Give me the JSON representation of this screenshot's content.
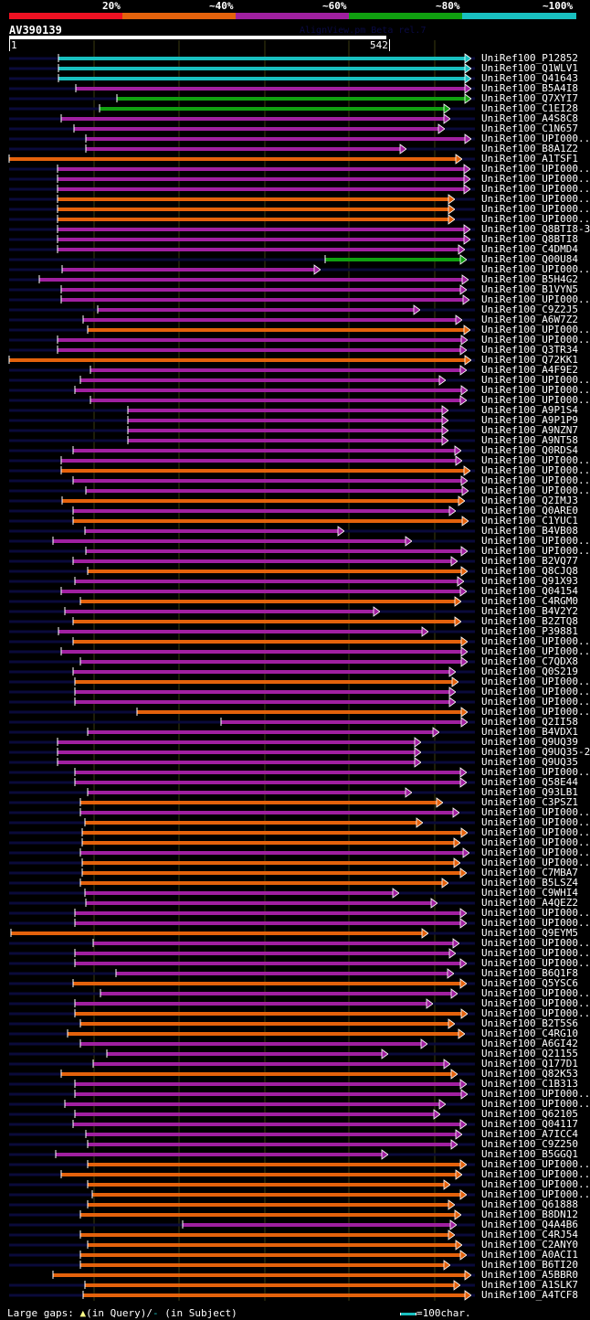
{
  "legend": {
    "bins": [
      {
        "label": "20%",
        "color": "#ee1122"
      },
      {
        "label": "~40%",
        "color": "#e4620c"
      },
      {
        "label": "~60%",
        "color": "#a020a0"
      },
      {
        "label": "~80%",
        "color": "#10a010"
      },
      {
        "label": "~100%",
        "color": "#19c0c0"
      }
    ]
  },
  "query": {
    "name": "AV390139",
    "start": "1",
    "end": "542",
    "length": 542
  },
  "watermark": "AlignView.pm Beta rel.7",
  "footer": {
    "gaps_label": "Large gaps:",
    "query_gap": "(in Query)/",
    "subject_gap": "(in Subject)",
    "scale_label": "=100char."
  },
  "colors": {
    "cyan": "#19c0c0",
    "green": "#10a010",
    "purple": "#a020a0",
    "orange": "#e4620c",
    "context": "#0a0a3a",
    "gap_marker": "#ffff88",
    "grid": "#3a3a10"
  },
  "hits": [
    {
      "name": "UniRef100_P12852",
      "c": "cyan",
      "s": 64,
      "e": 515
    },
    {
      "name": "UniRef100_Q1WLV1",
      "c": "cyan",
      "s": 64,
      "e": 515
    },
    {
      "name": "UniRef100_Q41643",
      "c": "cyan",
      "s": 64,
      "e": 515
    },
    {
      "name": "UniRef100_B5A4I8",
      "c": "purple",
      "s": 83,
      "e": 515
    },
    {
      "name": "UniRef100_Q7XYI7",
      "c": "green",
      "s": 128,
      "e": 515
    },
    {
      "name": "UniRef100_C1EI28",
      "c": "green",
      "s": 109,
      "e": 492
    },
    {
      "name": "UniRef100_A4S8C8",
      "c": "purple",
      "s": 67,
      "e": 492
    },
    {
      "name": "UniRef100_C1N657",
      "c": "purple",
      "s": 81,
      "e": 486
    },
    {
      "name": "UniRef100_UPI000..",
      "c": "purple",
      "s": 94,
      "e": 515
    },
    {
      "name": "UniRef100_B8A1Z2",
      "c": "purple",
      "s": 94,
      "e": 444
    },
    {
      "name": "UniRef100_A1TSF1",
      "c": "orange",
      "s": 10,
      "e": 505
    },
    {
      "name": "UniRef100_UPI000..",
      "c": "purple",
      "s": 63,
      "e": 514
    },
    {
      "name": "UniRef100_UPI000..",
      "c": "purple",
      "s": 63,
      "e": 514
    },
    {
      "name": "UniRef100_UPI000..",
      "c": "purple",
      "s": 63,
      "e": 514
    },
    {
      "name": "UniRef100_UPI000..",
      "c": "orange",
      "s": 63,
      "e": 497
    },
    {
      "name": "UniRef100_UPI000..",
      "c": "orange",
      "s": 63,
      "e": 497
    },
    {
      "name": "UniRef100_UPI000..",
      "c": "orange",
      "s": 63,
      "e": 497
    },
    {
      "name": "UniRef100_Q8BTI8-3",
      "c": "purple",
      "s": 63,
      "e": 514
    },
    {
      "name": "UniRef100_Q8BTI8",
      "c": "purple",
      "s": 63,
      "e": 514
    },
    {
      "name": "UniRef100_C4DMD4",
      "c": "purple",
      "s": 63,
      "e": 508
    },
    {
      "name": "UniRef100_Q00U84",
      "c": "green",
      "s": 356,
      "e": 510
    },
    {
      "name": "UniRef100_UPI000..",
      "c": "purple",
      "s": 68,
      "e": 350
    },
    {
      "name": "UniRef100_B5H4G2",
      "c": "purple",
      "s": 43,
      "e": 512
    },
    {
      "name": "UniRef100_B1VYN5",
      "c": "purple",
      "s": 67,
      "e": 510
    },
    {
      "name": "UniRef100_UPI000..",
      "c": "purple",
      "s": 67,
      "e": 513
    },
    {
      "name": "UniRef100_C9Z2J5",
      "c": "purple",
      "s": 107,
      "e": 459
    },
    {
      "name": "UniRef100_A6W7Z2",
      "c": "purple",
      "s": 91,
      "e": 505
    },
    {
      "name": "UniRef100_UPI000..",
      "c": "orange",
      "s": 96,
      "e": 514
    },
    {
      "name": "UniRef100_UPI000..",
      "c": "purple",
      "s": 63,
      "e": 511
    },
    {
      "name": "UniRef100_Q3TR34",
      "c": "purple",
      "s": 63,
      "e": 510
    },
    {
      "name": "UniRef100_Q72KK1",
      "c": "orange",
      "s": 10,
      "e": 515
    },
    {
      "name": "UniRef100_A4F9E2",
      "c": "purple",
      "s": 99,
      "e": 510
    },
    {
      "name": "UniRef100_UPI000..",
      "c": "purple",
      "s": 88,
      "e": 487
    },
    {
      "name": "UniRef100_UPI000..",
      "c": "purple",
      "s": 82,
      "e": 511
    },
    {
      "name": "UniRef100_UPI000..",
      "c": "purple",
      "s": 99,
      "e": 510
    },
    {
      "name": "UniRef100_A9P1S4",
      "c": "purple",
      "s": 140,
      "e": 490
    },
    {
      "name": "UniRef100_A9P1P9",
      "c": "purple",
      "s": 140,
      "e": 490
    },
    {
      "name": "UniRef100_A9NZN7",
      "c": "purple",
      "s": 140,
      "e": 490
    },
    {
      "name": "UniRef100_A9NT58",
      "c": "purple",
      "s": 140,
      "e": 490
    },
    {
      "name": "UniRef100_Q0RDS4",
      "c": "purple",
      "s": 80,
      "e": 504
    },
    {
      "name": "UniRef100_UPI000..",
      "c": "purple",
      "s": 67,
      "e": 505
    },
    {
      "name": "UniRef100_UPI000..",
      "c": "orange",
      "s": 67,
      "e": 514
    },
    {
      "name": "UniRef100_UPI000..",
      "c": "purple",
      "s": 80,
      "e": 511
    },
    {
      "name": "UniRef100_UPI000..",
      "c": "purple",
      "s": 94,
      "e": 512
    },
    {
      "name": "UniRef100_Q2IMJ3",
      "c": "orange",
      "s": 68,
      "e": 508
    },
    {
      "name": "UniRef100_Q0ARE0",
      "c": "purple",
      "s": 80,
      "e": 498
    },
    {
      "name": "UniRef100_C1YUC1",
      "c": "orange",
      "s": 80,
      "e": 512
    },
    {
      "name": "UniRef100_B4VB08",
      "c": "purple",
      "s": 93,
      "e": 376
    },
    {
      "name": "UniRef100_UPI000..",
      "c": "purple",
      "s": 58,
      "e": 450
    },
    {
      "name": "UniRef100_UPI000..",
      "c": "purple",
      "s": 94,
      "e": 511
    },
    {
      "name": "UniRef100_B2VQ77",
      "c": "purple",
      "s": 80,
      "e": 500
    },
    {
      "name": "UniRef100_Q8CJQ8",
      "c": "orange",
      "s": 96,
      "e": 511
    },
    {
      "name": "UniRef100_Q91X93",
      "c": "purple",
      "s": 82,
      "e": 507
    },
    {
      "name": "UniRef100_Q04154",
      "c": "purple",
      "s": 67,
      "e": 510
    },
    {
      "name": "UniRef100_C4RGM0",
      "c": "orange",
      "s": 88,
      "e": 504
    },
    {
      "name": "UniRef100_B4V2Y2",
      "c": "purple",
      "s": 71,
      "e": 415
    },
    {
      "name": "UniRef100_B2ZTQ8",
      "c": "orange",
      "s": 80,
      "e": 504
    },
    {
      "name": "UniRef100_P39881",
      "c": "purple",
      "s": 64,
      "e": 468
    },
    {
      "name": "UniRef100_UPI000..",
      "c": "orange",
      "s": 80,
      "e": 511
    },
    {
      "name": "UniRef100_UPI000..",
      "c": "purple",
      "s": 67,
      "e": 511
    },
    {
      "name": "UniRef100_C7QDX8",
      "c": "purple",
      "s": 88,
      "e": 511
    },
    {
      "name": "UniRef100_Q0S219",
      "c": "purple",
      "s": 80,
      "e": 498
    },
    {
      "name": "UniRef100_UPI000..",
      "c": "orange",
      "s": 82,
      "e": 501
    },
    {
      "name": "UniRef100_UPI000..",
      "c": "purple",
      "s": 82,
      "e": 498
    },
    {
      "name": "UniRef100_UPI000..",
      "c": "purple",
      "s": 82,
      "e": 498
    },
    {
      "name": "UniRef100_UPI000..",
      "c": "orange",
      "s": 150,
      "e": 511
    },
    {
      "name": "UniRef100_Q2II58",
      "c": "purple",
      "s": 242,
      "e": 511
    },
    {
      "name": "UniRef100_B4VDX1",
      "c": "purple",
      "s": 96,
      "e": 480
    },
    {
      "name": "UniRef100_Q9UQ39",
      "c": "purple",
      "s": 63,
      "e": 460
    },
    {
      "name": "UniRef100_Q9UQ35-2",
      "c": "purple",
      "s": 63,
      "e": 460
    },
    {
      "name": "UniRef100_Q9UQ35",
      "c": "purple",
      "s": 63,
      "e": 460
    },
    {
      "name": "UniRef100_UPI000..",
      "c": "purple",
      "s": 82,
      "e": 510
    },
    {
      "name": "UniRef100_Q58E44",
      "c": "purple",
      "s": 82,
      "e": 510
    },
    {
      "name": "UniRef100_Q93LB1",
      "c": "purple",
      "s": 96,
      "e": 450
    },
    {
      "name": "UniRef100_C3PSZ1",
      "c": "orange",
      "s": 88,
      "e": 484
    },
    {
      "name": "UniRef100_UPI000..",
      "c": "purple",
      "s": 88,
      "e": 502
    },
    {
      "name": "UniRef100_UPI000..",
      "c": "orange",
      "s": 93,
      "e": 462
    },
    {
      "name": "UniRef100_UPI000..",
      "c": "orange",
      "s": 90,
      "e": 511
    },
    {
      "name": "UniRef100_UPI000..",
      "c": "orange",
      "s": 90,
      "e": 503
    },
    {
      "name": "UniRef100_UPI000..",
      "c": "purple",
      "s": 88,
      "e": 513
    },
    {
      "name": "UniRef100_UPI000..",
      "c": "orange",
      "s": 90,
      "e": 503
    },
    {
      "name": "UniRef100_C7MBA7",
      "c": "orange",
      "s": 90,
      "e": 510
    },
    {
      "name": "UniRef100_B5LSZ4",
      "c": "orange",
      "s": 88,
      "e": 490
    },
    {
      "name": "UniRef100_C9WHI4",
      "c": "purple",
      "s": 93,
      "e": 436
    },
    {
      "name": "UniRef100_A4QEZ2",
      "c": "purple",
      "s": 94,
      "e": 478
    },
    {
      "name": "UniRef100_UPI000..",
      "c": "purple",
      "s": 82,
      "e": 510
    },
    {
      "name": "UniRef100_UPI000..",
      "c": "purple",
      "s": 82,
      "e": 510
    },
    {
      "name": "UniRef100_Q9EYM5",
      "c": "orange",
      "s": 12,
      "e": 468
    },
    {
      "name": "UniRef100_UPI000..",
      "c": "purple",
      "s": 102,
      "e": 502
    },
    {
      "name": "UniRef100_UPI000..",
      "c": "purple",
      "s": 82,
      "e": 498
    },
    {
      "name": "UniRef100_UPI000..",
      "c": "purple",
      "s": 82,
      "e": 510
    },
    {
      "name": "UniRef100_B6Q1F8",
      "c": "purple",
      "s": 127,
      "e": 496
    },
    {
      "name": "UniRef100_Q5YSC6",
      "c": "orange",
      "s": 80,
      "e": 510
    },
    {
      "name": "UniRef100_UPI000..",
      "c": "purple",
      "s": 110,
      "e": 500
    },
    {
      "name": "UniRef100_UPI000..",
      "c": "purple",
      "s": 82,
      "e": 473
    },
    {
      "name": "UniRef100_UPI000..",
      "c": "orange",
      "s": 82,
      "e": 511
    },
    {
      "name": "UniRef100_B2T5S6",
      "c": "orange",
      "s": 88,
      "e": 497
    },
    {
      "name": "UniRef100_C4RG10",
      "c": "orange",
      "s": 74,
      "e": 508
    },
    {
      "name": "UniRef100_A6GI42",
      "c": "purple",
      "s": 88,
      "e": 467
    },
    {
      "name": "UniRef100_Q21155",
      "c": "purple",
      "s": 117,
      "e": 424
    },
    {
      "name": "UniRef100_Q177D1",
      "c": "purple",
      "s": 102,
      "e": 492
    },
    {
      "name": "UniRef100_Q82K53",
      "c": "orange",
      "s": 67,
      "e": 500
    },
    {
      "name": "UniRef100_C1B313",
      "c": "purple",
      "s": 82,
      "e": 510
    },
    {
      "name": "UniRef100_UPI000..",
      "c": "purple",
      "s": 82,
      "e": 511
    },
    {
      "name": "UniRef100_UPI000..",
      "c": "purple",
      "s": 71,
      "e": 487
    },
    {
      "name": "UniRef100_Q62105",
      "c": "purple",
      "s": 82,
      "e": 481
    },
    {
      "name": "UniRef100_Q04117",
      "c": "purple",
      "s": 80,
      "e": 510
    },
    {
      "name": "UniRef100_A7ICC4",
      "c": "purple",
      "s": 94,
      "e": 505
    },
    {
      "name": "UniRef100_C9Z250",
      "c": "purple",
      "s": 96,
      "e": 500
    },
    {
      "name": "UniRef100_B5GGQ1",
      "c": "purple",
      "s": 61,
      "e": 424
    },
    {
      "name": "UniRef100_UPI000..",
      "c": "orange",
      "s": 96,
      "e": 510
    },
    {
      "name": "UniRef100_UPI000..",
      "c": "orange",
      "s": 67,
      "e": 505
    },
    {
      "name": "UniRef100_UPI000..",
      "c": "orange",
      "s": 96,
      "e": 492
    },
    {
      "name": "UniRef100_UPI000..",
      "c": "orange",
      "s": 101,
      "e": 510
    },
    {
      "name": "UniRef100_Q61888",
      "c": "orange",
      "s": 96,
      "e": 497
    },
    {
      "name": "UniRef100_B8DN12",
      "c": "orange",
      "s": 88,
      "e": 504
    },
    {
      "name": "UniRef100_Q4A4B6",
      "c": "purple",
      "s": 200,
      "e": 499
    },
    {
      "name": "UniRef100_C4RJ54",
      "c": "orange",
      "s": 88,
      "e": 497
    },
    {
      "name": "UniRef100_C2ANY0",
      "c": "orange",
      "s": 96,
      "e": 505
    },
    {
      "name": "UniRef100_A0ACI1",
      "c": "orange",
      "s": 88,
      "e": 510
    },
    {
      "name": "UniRef100_B6TI20",
      "c": "orange",
      "s": 88,
      "e": 492
    },
    {
      "name": "UniRef100_A5BBR0",
      "c": "orange",
      "s": 58,
      "e": 515
    },
    {
      "name": "UniRef100_A1SLK7",
      "c": "orange",
      "s": 93,
      "e": 503
    },
    {
      "name": "UniRef100_A4TCF8",
      "c": "orange",
      "s": 91,
      "e": 515
    }
  ]
}
